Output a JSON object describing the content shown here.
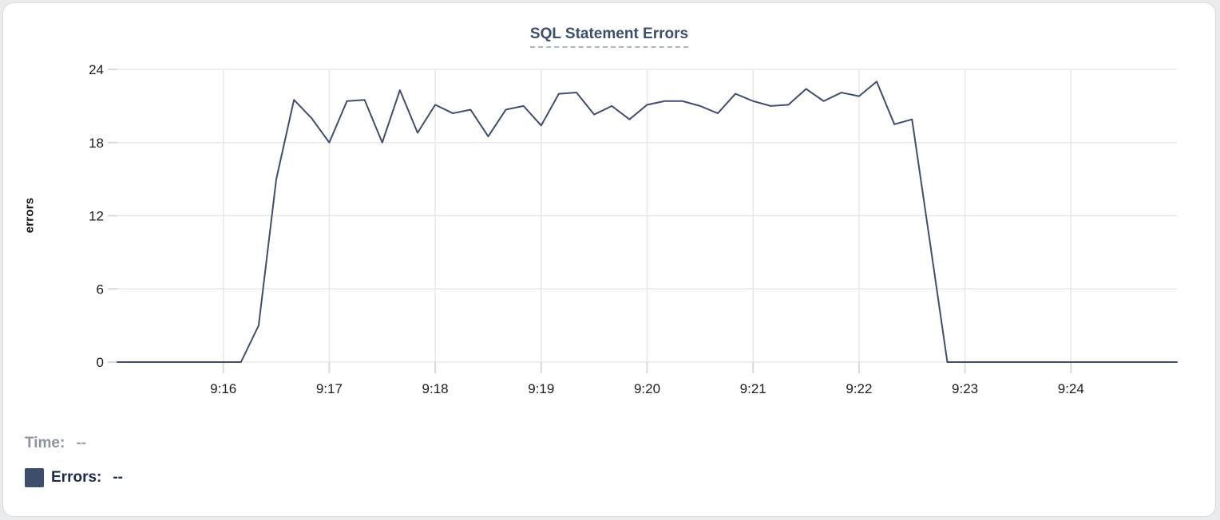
{
  "chart_data": {
    "type": "line",
    "title": "SQL Statement Errors",
    "ylabel": "errors",
    "yticks": [
      0,
      6,
      12,
      18,
      24
    ],
    "ylim": [
      0,
      24
    ],
    "xlim_minutes": [
      0,
      10
    ],
    "x_tick_labels": [
      "9:16",
      "9:17",
      "9:18",
      "9:19",
      "9:20",
      "9:21",
      "9:22",
      "9:23",
      "9:24"
    ],
    "x_tick_minutes": [
      1,
      2,
      3,
      4,
      5,
      6,
      7,
      8,
      9
    ],
    "start_time": "9:15:00",
    "interval_seconds": 10,
    "series_name": "Errors",
    "values": [
      0,
      0,
      0,
      0,
      0,
      0,
      0,
      0,
      3,
      15,
      21.5,
      20,
      18,
      21.4,
      21.5,
      18,
      22.3,
      18.8,
      21.1,
      20.4,
      20.7,
      18.5,
      20.7,
      21,
      19.4,
      22,
      22.1,
      20.3,
      21,
      19.9,
      21.1,
      21.4,
      21.4,
      21,
      20.4,
      22,
      21.4,
      21,
      21.1,
      22.4,
      21.4,
      22.1,
      21.8,
      23,
      19.5,
      19.9,
      10,
      0,
      0,
      0,
      0,
      0,
      0,
      0,
      0,
      0,
      0,
      0,
      0,
      0,
      0
    ],
    "line_color": "#3e4e6c",
    "grid": true,
    "legend_position": "bottom-left"
  },
  "legend": {
    "time_label": "Time:",
    "time_value": "--",
    "errors_label": "Errors:",
    "errors_value": "--",
    "swatch_color": "#3e4d6a"
  },
  "colors": {
    "line": "#3e4e6c",
    "title": "#3d4e6e",
    "gridline": "#e8e8e8",
    "tick": "#d9d9d9",
    "axis_text": "#1c1c1e"
  }
}
